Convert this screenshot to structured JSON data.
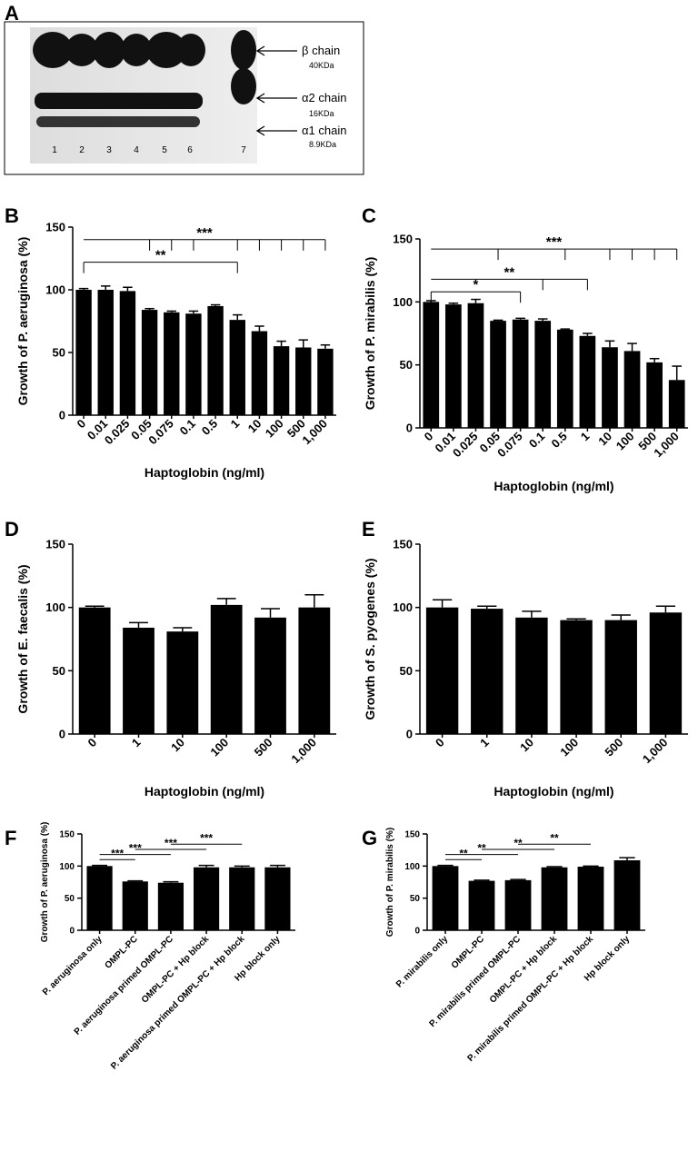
{
  "panels": [
    "A",
    "B",
    "C",
    "D",
    "E",
    "F",
    "G"
  ],
  "blot": {
    "labels": [
      "β chain",
      "40KDa",
      "α2 chain",
      "16KDa",
      "α1 chain",
      "8.9KDa"
    ],
    "lanes": [
      "1",
      "2",
      "3",
      "4",
      "5",
      "6",
      "7"
    ]
  },
  "chart_data": [
    {
      "type": "bar",
      "ylabel": "Growth of P. aeruginosa (%)",
      "xlabel": "Haptoglobin (ng/ml)",
      "color": "#000000",
      "categories": [
        "0",
        "0.01",
        "0.025",
        "0.05",
        "0.075",
        "0.1",
        "0.5",
        "1",
        "10",
        "100",
        "500",
        "1,000"
      ],
      "values": [
        100,
        100,
        99,
        84,
        82,
        81,
        87,
        76,
        67,
        55,
        54,
        53
      ],
      "errors": [
        1,
        3,
        3,
        1,
        1,
        2,
        1,
        4,
        4,
        4,
        6,
        3
      ],
      "ylim": [
        0,
        150
      ],
      "yticks": [
        0,
        50,
        100,
        150
      ],
      "annotations": [
        "***",
        "**"
      ]
    },
    {
      "type": "bar",
      "ylabel": "Growth of P. mirabilis (%)",
      "xlabel": "Haptoglobin (ng/ml)",
      "color": "#000000",
      "categories": [
        "0",
        "0.01",
        "0.025",
        "0.05",
        "0.075",
        "0.1",
        "0.5",
        "1",
        "10",
        "100",
        "500",
        "1,000"
      ],
      "values": [
        100,
        98,
        99,
        85,
        86,
        85,
        78,
        73,
        64,
        61,
        52,
        38
      ],
      "errors": [
        1,
        1,
        3,
        0.5,
        1,
        1.5,
        0.5,
        2,
        5,
        6,
        3,
        11
      ],
      "ylim": [
        0,
        150
      ],
      "yticks": [
        0,
        50,
        100,
        150
      ],
      "annotations": [
        "***",
        "**",
        "*"
      ]
    },
    {
      "type": "bar",
      "ylabel": "Growth of E. faecalis (%)",
      "xlabel": "Haptoglobin (ng/ml)",
      "color": "#000000",
      "categories": [
        "0",
        "1",
        "10",
        "100",
        "500",
        "1,000"
      ],
      "values": [
        100,
        84,
        81,
        102,
        92,
        100
      ],
      "errors": [
        1,
        4,
        3,
        5,
        7,
        10
      ],
      "ylim": [
        0,
        150
      ],
      "yticks": [
        0,
        50,
        100,
        150
      ],
      "annotations": []
    },
    {
      "type": "bar",
      "ylabel": "Growth of S. pyogenes (%)",
      "xlabel": "Haptoglobin (ng/ml)",
      "color": "#000000",
      "categories": [
        "0",
        "1",
        "10",
        "100",
        "500",
        "1,000"
      ],
      "values": [
        100,
        99,
        92,
        90,
        90,
        96
      ],
      "errors": [
        6,
        2,
        5,
        1,
        4,
        5
      ],
      "ylim": [
        0,
        150
      ],
      "yticks": [
        0,
        50,
        100,
        150
      ],
      "annotations": []
    },
    {
      "type": "bar",
      "ylabel": "Growth of P. aeruginosa (%)",
      "color": "#000000",
      "categories": [
        "P. aeruginosa only",
        "OMPL-PC",
        "P. aeruginosa primed OMPL-PC",
        "OMPL-PC + Hp block",
        "P. aeruginosa primed OMPL-PC + Hp block",
        "Hp block only"
      ],
      "values": [
        100,
        76,
        74,
        98,
        98,
        98
      ],
      "errors": [
        1,
        1,
        1.5,
        3,
        2,
        3
      ],
      "ylim": [
        0,
        150
      ],
      "yticks": [
        0,
        50,
        100,
        150
      ],
      "annotations": [
        "***",
        "***",
        "***",
        "***"
      ]
    },
    {
      "type": "bar",
      "ylabel": "Growth of P. mirabilis (%)",
      "color": "#000000",
      "categories": [
        "P. mirabilis only",
        "OMPL-PC",
        "P. mirabilis primed OMPL-PC",
        "OMPL-PC + Hp block",
        "P. mirabilis primed OMPL-PC + Hp block",
        "Hp block only"
      ],
      "values": [
        100,
        77,
        78,
        98,
        99,
        109
      ],
      "errors": [
        1,
        1,
        1,
        1,
        1,
        4
      ],
      "ylim": [
        0,
        150
      ],
      "yticks": [
        0,
        50,
        100,
        150
      ],
      "annotations": [
        "**",
        "**",
        "**",
        "**"
      ]
    }
  ]
}
